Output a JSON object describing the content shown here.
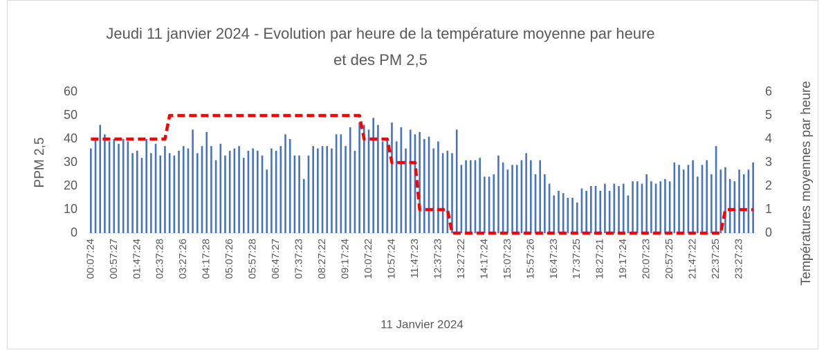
{
  "chart_data": {
    "type": "bar",
    "title": "Jeudi 11 janvier 2024 - Evolution par heure de la température moyenne par heure et des PM 2,5",
    "x_label": "11 Janvier 2024",
    "y_label": "PPM 2,5",
    "y2_label": "Températures moyennes par heure",
    "categories": [
      "00:07:24",
      null,
      null,
      null,
      null,
      "00:57:27",
      null,
      null,
      null,
      null,
      "01:47:24",
      null,
      null,
      null,
      null,
      "02:37:28",
      null,
      null,
      null,
      null,
      "03:27:26",
      null,
      null,
      null,
      null,
      "04:17:28",
      null,
      null,
      null,
      null,
      "05:07:26",
      null,
      null,
      null,
      null,
      "05:57:28",
      null,
      null,
      null,
      null,
      "06:47:27",
      null,
      null,
      null,
      null,
      "07:37:23",
      null,
      null,
      null,
      null,
      "08:27:22",
      null,
      null,
      null,
      null,
      "09:17:24",
      null,
      null,
      null,
      null,
      "10:07:22",
      null,
      null,
      null,
      null,
      "10:57:24",
      null,
      null,
      null,
      null,
      "11:47:23",
      null,
      null,
      null,
      null,
      "12:37:23",
      null,
      null,
      null,
      null,
      "13:27:22",
      null,
      null,
      null,
      null,
      "14:17:24",
      null,
      null,
      null,
      null,
      "15:07:23",
      null,
      null,
      null,
      null,
      "15:57:26",
      null,
      null,
      null,
      null,
      "16:47:23",
      null,
      null,
      null,
      null,
      "17:37:25",
      null,
      null,
      null,
      null,
      "18:27:21",
      null,
      null,
      null,
      null,
      "19:17:24",
      null,
      null,
      null,
      null,
      "20:07:23",
      null,
      null,
      null,
      null,
      "20:57:25",
      null,
      null,
      null,
      null,
      "21:47:22",
      null,
      null,
      null,
      null,
      "22:37:25",
      null,
      null,
      null,
      null,
      "23:27:23",
      null,
      null,
      null
    ],
    "series": [
      {
        "type": "bar",
        "color": "#4472c4",
        "values": [
          36,
          40,
          46,
          42,
          39,
          40,
          38,
          40,
          39,
          34,
          35,
          32,
          40,
          34,
          38,
          33,
          37,
          34,
          33,
          35,
          37,
          36,
          44,
          34,
          37,
          43,
          37,
          31,
          38,
          33,
          35,
          36,
          37,
          32,
          35,
          36,
          35,
          33,
          27,
          36,
          35,
          37,
          42,
          40,
          33,
          33,
          23,
          33,
          37,
          36,
          37,
          37,
          36,
          42,
          42,
          37,
          45,
          35,
          47,
          46,
          44,
          49,
          46,
          39,
          40,
          47,
          39,
          45,
          36,
          44,
          42,
          43,
          40,
          41,
          36,
          39,
          34,
          35,
          34,
          44,
          29,
          31,
          31,
          31,
          32,
          24,
          24,
          25,
          33,
          30,
          27,
          29,
          29,
          31,
          34,
          31,
          25,
          31,
          25,
          21,
          16,
          18,
          17,
          15,
          15,
          13,
          19,
          18,
          20,
          20,
          18,
          21,
          18,
          21,
          20,
          21,
          16,
          22,
          22,
          21,
          25,
          22,
          21,
          22,
          23,
          22,
          30,
          29,
          27,
          29,
          31,
          24,
          29,
          31,
          25,
          37,
          27,
          28,
          23,
          22,
          27,
          25,
          27,
          30
        ]
      },
      {
        "type": "line",
        "axis": "y2",
        "color": "#ff0000",
        "values": [
          4,
          4,
          4,
          4,
          4,
          4,
          4,
          4,
          4,
          4,
          4,
          4,
          4,
          4,
          4,
          4,
          4,
          5,
          5,
          5,
          5,
          5,
          5,
          5,
          5,
          5,
          5,
          5,
          5,
          5,
          5,
          5,
          5,
          5,
          5,
          5,
          5,
          5,
          5,
          5,
          5,
          5,
          5,
          5,
          5,
          5,
          5,
          5,
          5,
          5,
          5,
          5,
          5,
          5,
          5,
          5,
          5,
          5,
          5,
          4,
          4,
          4,
          4,
          4,
          4,
          3,
          3,
          3,
          3,
          3,
          3,
          1,
          1,
          1,
          1,
          1,
          1,
          1,
          0,
          0,
          0,
          0,
          0,
          0,
          0,
          0,
          0,
          0,
          0,
          0,
          0,
          0,
          0,
          0,
          0,
          0,
          0,
          0,
          0,
          0,
          0,
          0,
          0,
          0,
          0,
          0,
          0,
          0,
          0,
          0,
          0,
          0,
          0,
          0,
          0,
          0,
          0,
          0,
          0,
          0,
          0,
          0,
          0,
          0,
          0,
          0,
          0,
          0,
          0,
          0,
          0,
          0,
          0,
          0,
          0,
          0,
          0,
          1,
          1,
          1,
          1,
          1,
          1,
          1
        ]
      }
    ],
    "ylim": [
      0,
      60
    ],
    "yticks": [
      0,
      10,
      20,
      30,
      40,
      50,
      60
    ],
    "y2lim": [
      0,
      6
    ],
    "y2ticks": [
      0,
      1,
      2,
      3,
      4,
      5,
      6
    ],
    "grid": false
  }
}
